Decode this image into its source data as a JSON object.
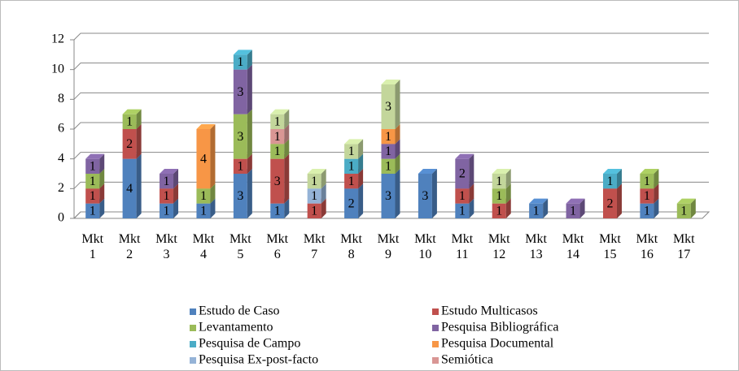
{
  "chart_data": {
    "type": "bar3d_stacked",
    "categories": [
      "Mkt 1",
      "Mkt 2",
      "Mkt 3",
      "Mkt 4",
      "Mkt 5",
      "Mkt 6",
      "Mkt 7",
      "Mkt 8",
      "Mkt 9",
      "Mkt 10",
      "Mkt 11",
      "Mkt 12",
      "Mkt 13",
      "Mkt 14",
      "Mkt 15",
      "Mkt 16",
      "Mkt 17"
    ],
    "series": [
      {
        "name": "Estudo de Caso",
        "color": "#4f81bd",
        "values": [
          1,
          4,
          1,
          1,
          3,
          1,
          null,
          2,
          3,
          3,
          1,
          null,
          1,
          null,
          null,
          1,
          null
        ]
      },
      {
        "name": "Estudo Multicasos",
        "color": "#c0504d",
        "values": [
          1,
          2,
          1,
          null,
          1,
          3,
          1,
          1,
          null,
          null,
          1,
          1,
          null,
          null,
          2,
          1,
          null
        ]
      },
      {
        "name": "Levantamento",
        "color": "#9bbb59",
        "values": [
          1,
          1,
          null,
          1,
          3,
          1,
          null,
          null,
          1,
          null,
          null,
          1,
          null,
          null,
          null,
          1,
          1
        ]
      },
      {
        "name": "Pesquisa Bibliográfica",
        "color": "#8064a2",
        "values": [
          1,
          null,
          1,
          null,
          3,
          null,
          null,
          null,
          1,
          null,
          2,
          null,
          null,
          1,
          null,
          null,
          null
        ]
      },
      {
        "name": "Pesquisa de Campo",
        "color": "#4bacc6",
        "values": [
          null,
          null,
          null,
          null,
          1,
          null,
          null,
          1,
          null,
          null,
          null,
          null,
          null,
          null,
          1,
          null,
          null
        ]
      },
      {
        "name": "Pesquisa Documental",
        "color": "#f79646",
        "values": [
          null,
          null,
          null,
          4,
          null,
          null,
          null,
          null,
          1,
          null,
          null,
          null,
          null,
          null,
          null,
          null,
          null
        ]
      },
      {
        "name": "Pesquisa Ex-post-facto",
        "color": "#95b3d7",
        "values": [
          null,
          null,
          null,
          null,
          null,
          null,
          1,
          null,
          null,
          null,
          null,
          null,
          null,
          null,
          null,
          null,
          null
        ]
      },
      {
        "name": "Semiótica",
        "color": "#d99694",
        "values": [
          null,
          null,
          null,
          null,
          null,
          1,
          null,
          null,
          null,
          null,
          null,
          null,
          null,
          null,
          null,
          null,
          null
        ]
      },
      {
        "color": "#c3d69b",
        "values": [
          null,
          null,
          null,
          null,
          null,
          1,
          1,
          1,
          3,
          null,
          null,
          1,
          null,
          null,
          null,
          null,
          null
        ]
      }
    ],
    "ylim": [
      0,
      12
    ],
    "yticks": [
      0,
      2,
      4,
      6,
      8,
      10,
      12
    ],
    "grid": true
  }
}
